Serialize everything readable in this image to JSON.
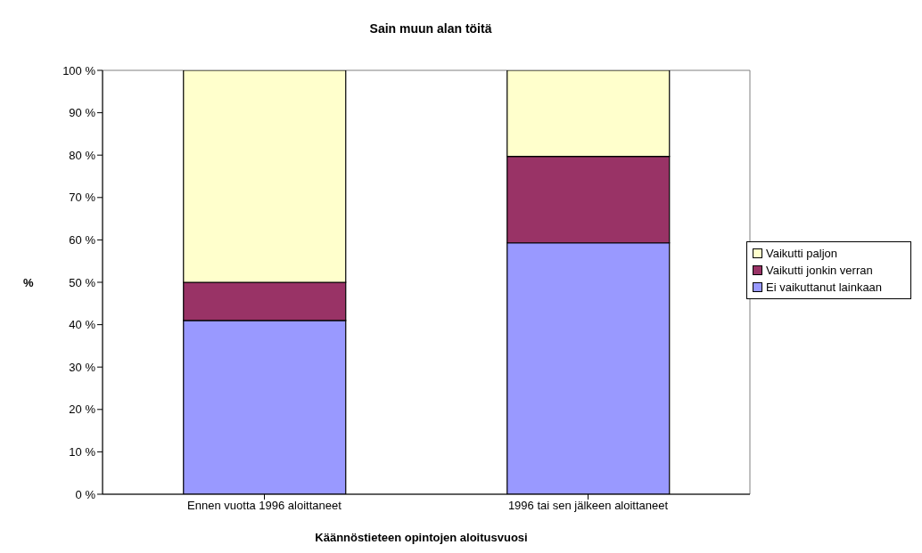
{
  "chart_data": {
    "type": "bar",
    "title": "Sain muun alan töitä",
    "xlabel": "Käännöstieteen opintojen aloitusvuosi",
    "ylabel": "%",
    "categories": [
      "Ennen vuotta 1996 aloittaneet",
      "1996 tai sen jälkeen aloittaneet"
    ],
    "stacked": true,
    "legend": "right",
    "grid": false,
    "series": [
      {
        "name": "Ei vaikuttanut lainkaan",
        "color": "#9999ff",
        "values": [
          41,
          59.3
        ]
      },
      {
        "name": "Vaikutti jonkin verran",
        "color": "#993366",
        "values": [
          9,
          20.4
        ]
      },
      {
        "name": "Vaikutti paljon",
        "color": "#ffffcc",
        "values": [
          50,
          20.3
        ]
      }
    ],
    "ylim": [
      0,
      100
    ],
    "yticks": [
      {
        "value": 0,
        "label": "0 %"
      },
      {
        "value": 10,
        "label": "10 %"
      },
      {
        "value": 20,
        "label": "20 %"
      },
      {
        "value": 30,
        "label": "30 %"
      },
      {
        "value": 40,
        "label": "40 %"
      },
      {
        "value": 50,
        "label": "50 %"
      },
      {
        "value": 60,
        "label": "60 %"
      },
      {
        "value": 70,
        "label": "70 %"
      },
      {
        "value": 80,
        "label": "80 %"
      },
      {
        "value": 90,
        "label": "90 %"
      },
      {
        "value": 100,
        "label": "100 %"
      }
    ]
  }
}
